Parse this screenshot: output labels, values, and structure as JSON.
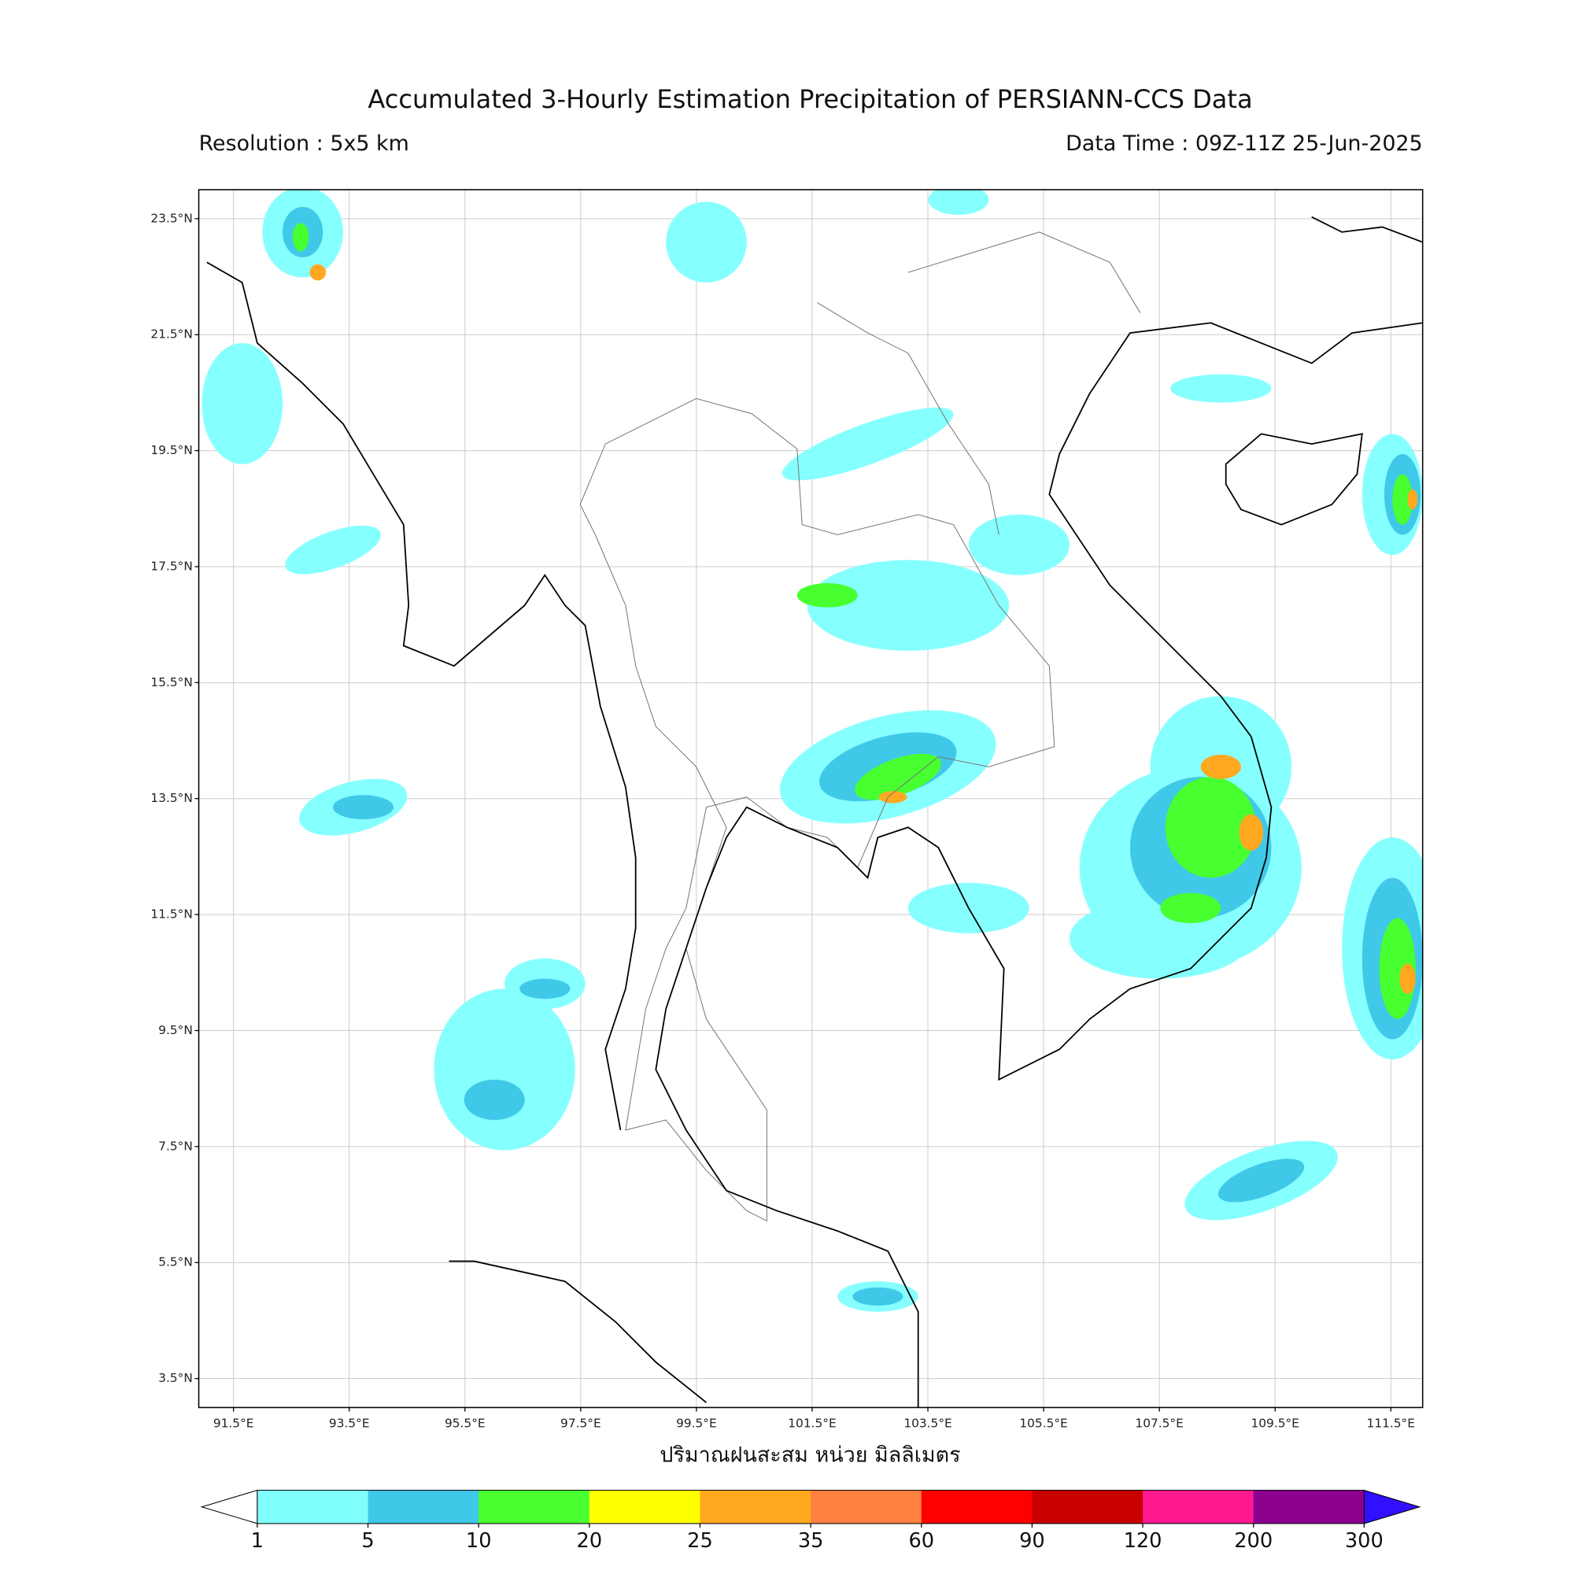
{
  "header": {
    "title": "Accumulated 3-Hourly Estimation Precipitation of PERSIANN-CCS Data",
    "resolution": "Resolution : 5x5 km",
    "data_time": "Data Time : 09Z-11Z 25-Jun-2025"
  },
  "map": {
    "lon_range": [
      90.9,
      112.05
    ],
    "lat_range": [
      3.0,
      24.0
    ],
    "lat_ticks": [
      {
        "value": 23.5,
        "label": "23.5°N"
      },
      {
        "value": 21.5,
        "label": "21.5°N"
      },
      {
        "value": 19.5,
        "label": "19.5°N"
      },
      {
        "value": 17.5,
        "label": "17.5°N"
      },
      {
        "value": 15.5,
        "label": "15.5°N"
      },
      {
        "value": 13.5,
        "label": "13.5°N"
      },
      {
        "value": 11.5,
        "label": "11.5°N"
      },
      {
        "value": 9.5,
        "label": "9.5°N"
      },
      {
        "value": 7.5,
        "label": "7.5°N"
      },
      {
        "value": 5.5,
        "label": "5.5°N"
      },
      {
        "value": 3.5,
        "label": "3.5°N"
      }
    ],
    "lon_ticks": [
      {
        "value": 91.5,
        "label": "91.5°E"
      },
      {
        "value": 93.5,
        "label": "93.5°E"
      },
      {
        "value": 95.5,
        "label": "95.5°E"
      },
      {
        "value": 97.5,
        "label": "97.5°E"
      },
      {
        "value": 99.5,
        "label": "99.5°E"
      },
      {
        "value": 101.5,
        "label": "101.5°E"
      },
      {
        "value": 103.5,
        "label": "103.5°E"
      },
      {
        "value": 105.5,
        "label": "105.5°E"
      },
      {
        "value": 107.5,
        "label": "107.5°E"
      },
      {
        "value": 109.5,
        "label": "109.5°E"
      },
      {
        "value": 111.5,
        "label": "111.5°E"
      }
    ],
    "x_label": "ปริมาณฝนสะสม หน่วย มิลลิเมตร"
  },
  "colorbar": {
    "levels": [
      1,
      5,
      10,
      20,
      25,
      35,
      60,
      90,
      120,
      200,
      300
    ],
    "colors": [
      "#80ffff",
      "#40c8e8",
      "#48ff30",
      "#ffff00",
      "#ffa820",
      "#ff8040",
      "#ff0000",
      "#c80000",
      "#ff1890",
      "#8c0090"
    ],
    "under_color": "#ffffff",
    "over_color": "#3010ff"
  }
}
